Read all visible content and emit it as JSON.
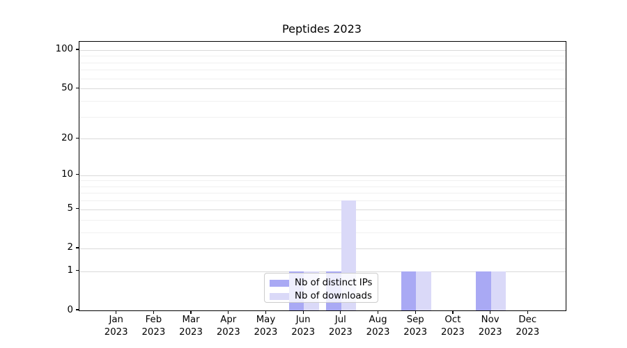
{
  "chart_data": {
    "type": "bar",
    "title": "Peptides 2023",
    "categories": [
      "Jan",
      "Feb",
      "Mar",
      "Apr",
      "May",
      "Jun",
      "Jul",
      "Aug",
      "Sep",
      "Oct",
      "Nov",
      "Dec"
    ],
    "category_year": "2023",
    "series": [
      {
        "name": "Nb of distinct IPs",
        "color": "#a9a9f4",
        "values": [
          0,
          0,
          0,
          0,
          0,
          1,
          1,
          0,
          1,
          0,
          1,
          0
        ]
      },
      {
        "name": "Nb of downloads",
        "color": "#dad9f8",
        "values": [
          0,
          0,
          0,
          0,
          0,
          1,
          6,
          0,
          1,
          0,
          1,
          0
        ]
      }
    ],
    "y_axis": {
      "scale": "log1p",
      "ticks": [
        0,
        1,
        2,
        5,
        10,
        20,
        50,
        100
      ],
      "minor_ticks": [
        3,
        4,
        6,
        7,
        8,
        9,
        30,
        40,
        60,
        70,
        80,
        90
      ],
      "max": 116
    },
    "legend_position": "lower center",
    "grid": true,
    "colors": {
      "grid_major": "#d9d9d9",
      "grid_minor": "#f0f0f0",
      "axis": "#000000",
      "legend_border": "#cccccc"
    }
  }
}
